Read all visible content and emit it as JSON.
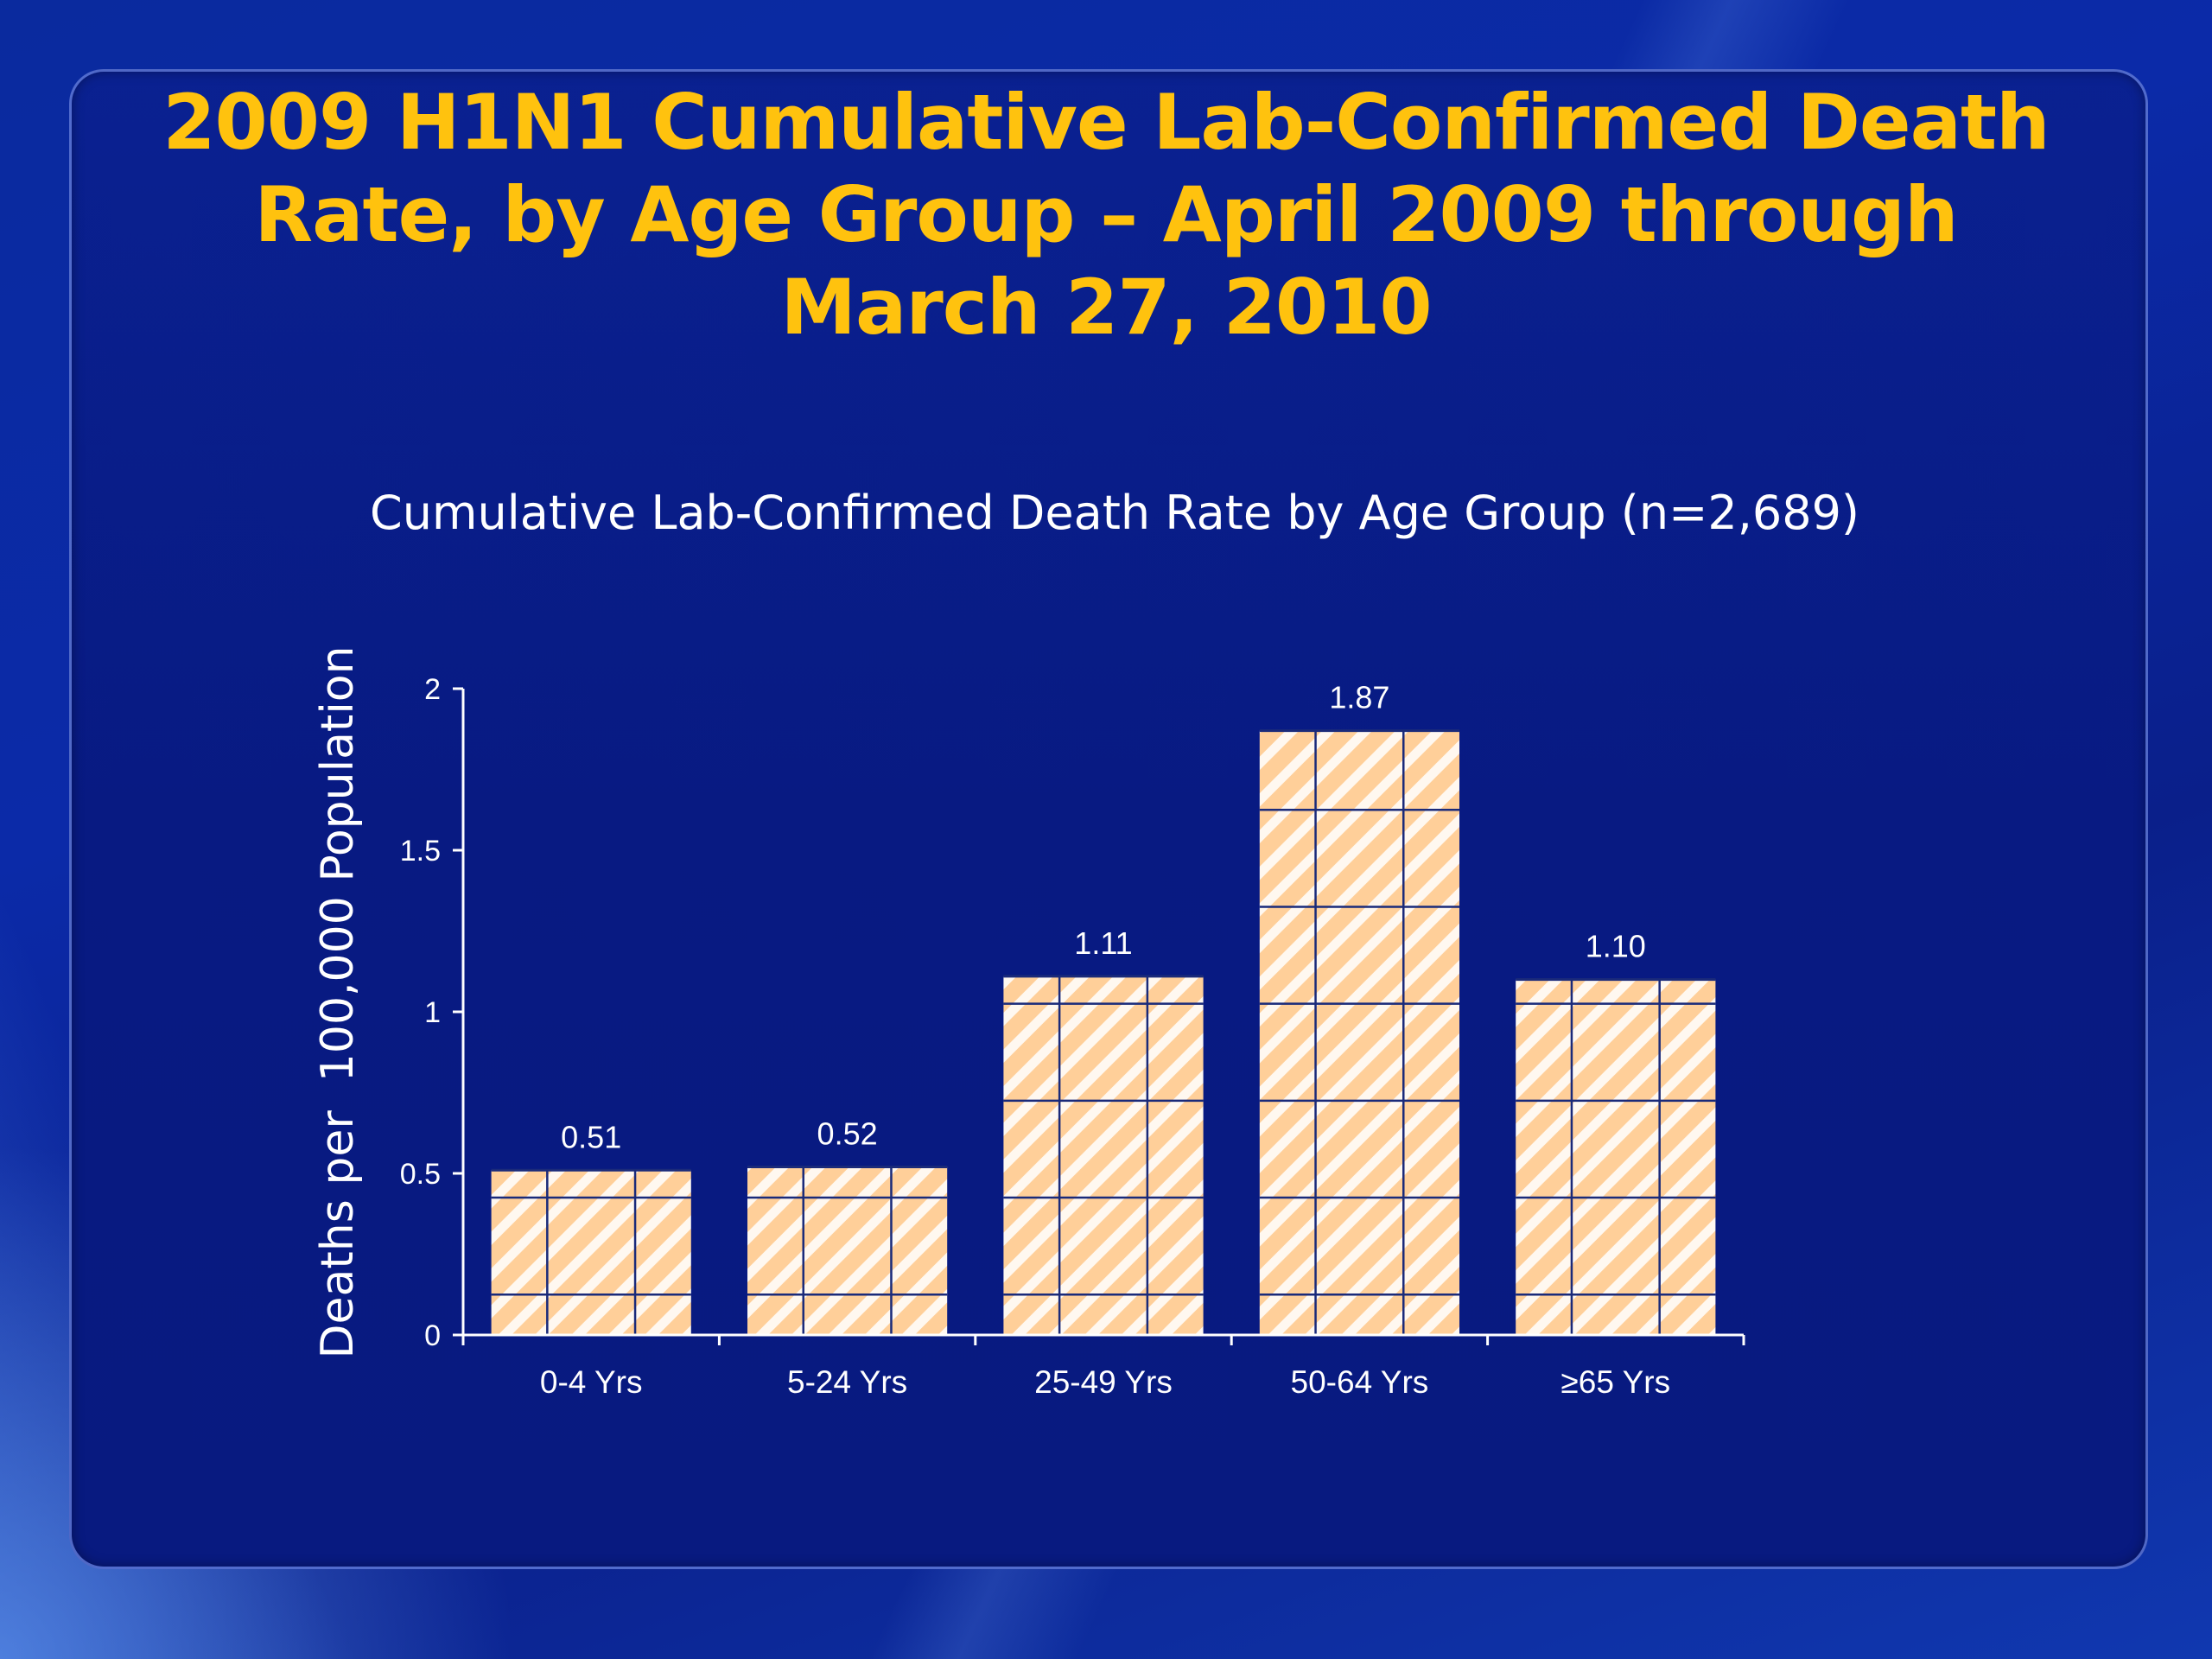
{
  "slide": {
    "title": "2009 H1N1 Cumulative Lab-Confirmed Death Rate, by Age Group – April 2009 through March 27, 2010"
  },
  "colors": {
    "title": "#ffc20e",
    "bar_fill": "#ffcf99",
    "bar_stripe": "#ffffff",
    "bar_grid": "#1a2a7a",
    "axis": "#ffffff"
  },
  "chart_data": {
    "type": "bar",
    "title": "Cumulative Lab-Confirmed Death Rate by Age Group (n=2,689)",
    "xlabel": "",
    "ylabel": "Deaths per  100,000 Population",
    "categories": [
      "0-4 Yrs",
      "5-24 Yrs",
      "25-49 Yrs",
      "50-64 Yrs",
      "≥65 Yrs"
    ],
    "values": [
      0.51,
      0.52,
      1.11,
      1.87,
      1.1
    ],
    "value_labels": [
      "0.51",
      "0.52",
      "1.11",
      "1.87",
      "1.10"
    ],
    "ylim": [
      0,
      2
    ],
    "yticks": [
      0,
      0.5,
      1,
      1.5,
      2
    ],
    "ytick_labels": [
      "0",
      "0.5",
      "1",
      "1.5",
      "2"
    ],
    "grid": false,
    "legend": "none"
  }
}
